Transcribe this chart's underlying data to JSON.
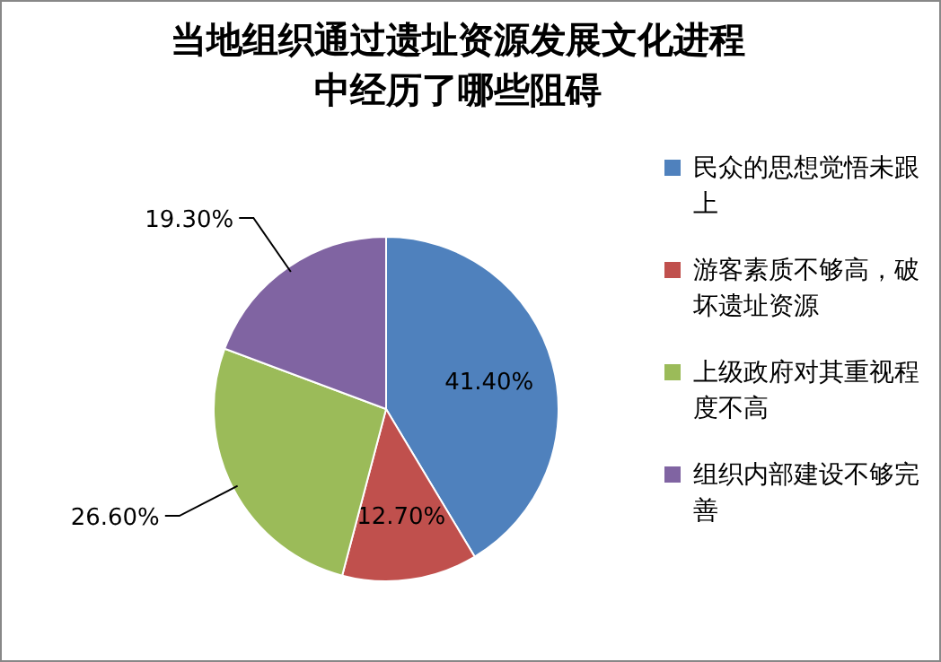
{
  "chart_data": {
    "type": "pie",
    "title": "当地组织通过遗址资源发展文化进程中经历了哪些阻碍",
    "categories": [
      "民众的思想觉悟未跟上",
      "游客素质不够高，破坏遗址资源",
      "上级政府对其重视程度不高",
      "组织内部建设不够完善"
    ],
    "values": [
      41.4,
      12.7,
      26.6,
      19.3
    ],
    "value_labels": [
      "41.40%",
      "12.70%",
      "26.60%",
      "19.30%"
    ],
    "colors": [
      "#4f81bd",
      "#c0504d",
      "#9bbb59",
      "#8064a2"
    ],
    "legend": "right"
  }
}
